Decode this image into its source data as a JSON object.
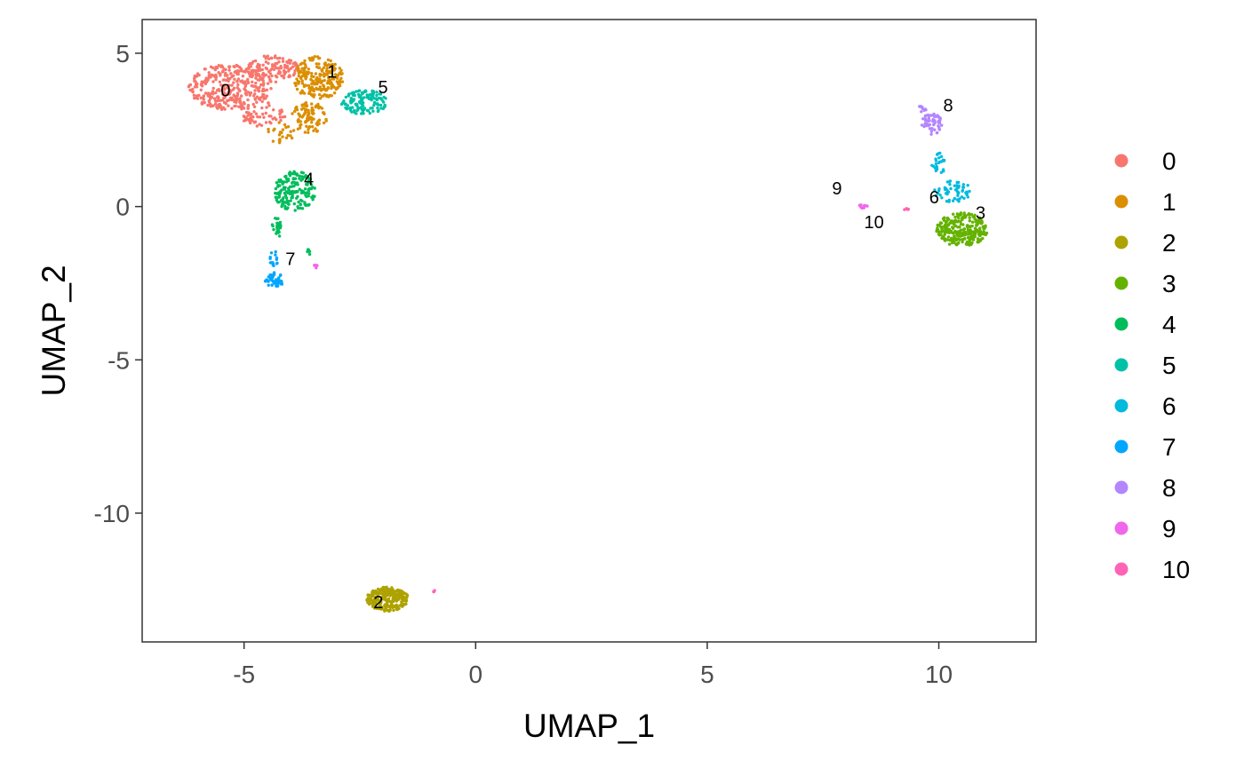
{
  "chart_data": {
    "type": "scatter",
    "xlabel": "UMAP_1",
    "ylabel": "UMAP_2",
    "xlim": [
      -7.2,
      12.1
    ],
    "ylim": [
      -14.2,
      6.1
    ],
    "x_ticks": [
      {
        "value": -5,
        "label": "-5"
      },
      {
        "value": 0,
        "label": "0"
      },
      {
        "value": 5,
        "label": "5"
      },
      {
        "value": 10,
        "label": "10"
      }
    ],
    "y_ticks": [
      {
        "value": 5,
        "label": "5"
      },
      {
        "value": 0,
        "label": "0"
      },
      {
        "value": -5,
        "label": "-5"
      },
      {
        "value": -10,
        "label": "-10"
      }
    ],
    "grid": false,
    "legend_position": "right",
    "series": [
      {
        "name": "0",
        "color": "#F8766D",
        "center": [
          -5.3,
          3.9
        ],
        "blobs": [
          [
            -5.3,
            3.9,
            0.9,
            0.75,
            330
          ],
          [
            -4.4,
            4.5,
            0.6,
            0.45,
            120
          ],
          [
            -4.6,
            3.0,
            0.5,
            0.4,
            60
          ]
        ]
      },
      {
        "name": "1",
        "color": "#DB8E00",
        "center": [
          -3.3,
          4.1
        ],
        "blobs": [
          [
            -3.4,
            4.2,
            0.55,
            0.7,
            220
          ],
          [
            -3.6,
            2.9,
            0.4,
            0.5,
            90
          ],
          [
            -4.2,
            2.4,
            0.3,
            0.35,
            25
          ]
        ]
      },
      {
        "name": "2",
        "color": "#AEA200",
        "center": [
          -2.1,
          -12.9
        ],
        "blobs": [
          [
            -1.9,
            -12.8,
            0.45,
            0.4,
            240
          ]
        ]
      },
      {
        "name": "3",
        "color": "#64B200",
        "center": [
          10.8,
          -0.7
        ],
        "blobs": [
          [
            10.5,
            -0.75,
            0.55,
            0.55,
            260
          ]
        ]
      },
      {
        "name": "4",
        "color": "#00BD5C",
        "center": [
          -3.7,
          0.5
        ],
        "blobs": [
          [
            -3.9,
            0.5,
            0.45,
            0.65,
            170
          ],
          [
            -4.3,
            -0.7,
            0.1,
            0.35,
            25
          ],
          [
            -3.6,
            -1.5,
            0.08,
            0.1,
            5
          ]
        ]
      },
      {
        "name": "5",
        "color": "#00C1A7",
        "center": [
          -2.1,
          3.6
        ],
        "blobs": [
          [
            -2.4,
            3.4,
            0.5,
            0.4,
            130
          ]
        ]
      },
      {
        "name": "6",
        "color": "#00BADE",
        "center": [
          10.0,
          0.5
        ],
        "blobs": [
          [
            10.3,
            0.5,
            0.4,
            0.35,
            55
          ],
          [
            10.0,
            1.4,
            0.15,
            0.35,
            25
          ]
        ]
      },
      {
        "name": "7",
        "color": "#00A6FF",
        "center": [
          -4.0,
          -2.0
        ],
        "blobs": [
          [
            -4.35,
            -2.4,
            0.2,
            0.25,
            50
          ],
          [
            -4.35,
            -1.7,
            0.1,
            0.3,
            15
          ]
        ]
      },
      {
        "name": "8",
        "color": "#B385FF",
        "center": [
          10.2,
          3.1
        ],
        "blobs": [
          [
            9.85,
            2.7,
            0.22,
            0.35,
            55
          ],
          [
            9.65,
            3.2,
            0.1,
            0.12,
            10
          ]
        ]
      },
      {
        "name": "9",
        "color": "#EF67EB",
        "center": [
          7.7,
          0.3
        ],
        "blobs": [
          [
            8.35,
            0.0,
            0.12,
            0.06,
            12
          ],
          [
            -3.45,
            -1.95,
            0.05,
            0.06,
            5
          ]
        ]
      },
      {
        "name": "10",
        "color": "#FF63B6",
        "center": [
          8.6,
          -0.7
        ],
        "blobs": [
          [
            9.3,
            -0.1,
            0.05,
            0.04,
            5
          ],
          [
            -0.9,
            -12.55,
            0.05,
            0.03,
            3
          ]
        ]
      }
    ],
    "cluster_labels": [
      {
        "text": "0",
        "x": -5.4,
        "y": 3.6
      },
      {
        "text": "1",
        "x": -3.1,
        "y": 4.2
      },
      {
        "text": "2",
        "x": -2.1,
        "y": -13.1
      },
      {
        "text": "3",
        "x": 10.9,
        "y": -0.4
      },
      {
        "text": "4",
        "x": -3.6,
        "y": 0.7
      },
      {
        "text": "5",
        "x": -2.0,
        "y": 3.7
      },
      {
        "text": "6",
        "x": 9.9,
        "y": 0.1
      },
      {
        "text": "7",
        "x": -4.0,
        "y": -1.9
      },
      {
        "text": "8",
        "x": 10.2,
        "y": 3.1
      },
      {
        "text": "9",
        "x": 7.8,
        "y": 0.4
      },
      {
        "text": "10",
        "x": 8.6,
        "y": -0.7
      }
    ]
  }
}
